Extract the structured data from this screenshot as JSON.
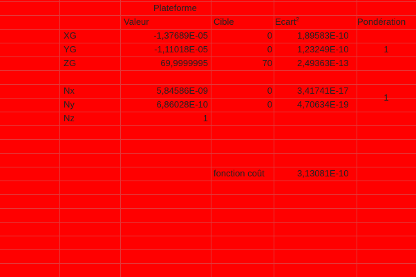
{
  "headers": {
    "plateforme": "Plateforme",
    "valeur": "Valeur",
    "cible": "Cible",
    "ecart": "Ecart",
    "ecart_exp": "2",
    "ponderation": "Pondération"
  },
  "rows": [
    {
      "label": "XG",
      "valeur": "-1,37689E-05",
      "cible": "0",
      "ecart": "1,89583E-10"
    },
    {
      "label": "YG",
      "valeur": "-1,11018E-05",
      "cible": "0",
      "ecart": "1,23249E-10"
    },
    {
      "label": "ZG",
      "valeur": "69,9999995",
      "cible": "70",
      "ecart": "2,49363E-13"
    },
    {
      "label": "Nx",
      "valeur": "5,84586E-09",
      "cible": "0",
      "ecart": "3,41741E-17"
    },
    {
      "label": "Ny",
      "valeur": "6,86028E-10",
      "cible": "0",
      "ecart": "4,70634E-19"
    },
    {
      "label": "Nz",
      "valeur": "1",
      "cible": "",
      "ecart": ""
    }
  ],
  "ponderation": {
    "group1": "1",
    "group2": "1"
  },
  "cost": {
    "label": "fonction coût",
    "value": "3,13081E-10"
  },
  "colors": {
    "background": "#FF0000",
    "text": "#222222",
    "gridline": "#E23A3A"
  }
}
